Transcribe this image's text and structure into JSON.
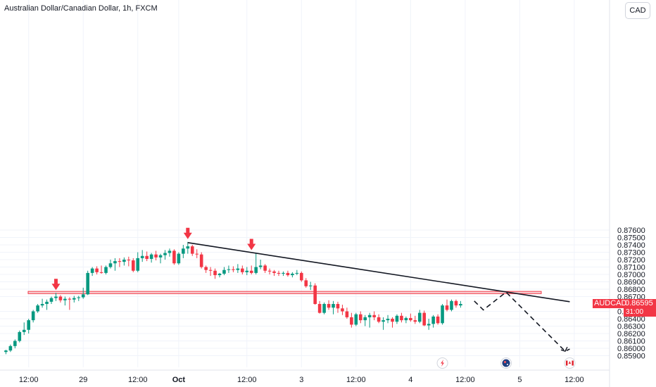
{
  "header": {
    "title": "Australian Dollar/Canadian Dollar, 1h, FXCM",
    "currency_badge": "CAD"
  },
  "colors": {
    "up": "#089981",
    "down": "#f23645",
    "grid": "#f0f3fa",
    "trendline": "#131722",
    "zone_fill": "#f7c6cb",
    "zone_border": "#f23645",
    "text": "#131722"
  },
  "last_price": {
    "symbol": "AUDCAD",
    "value": "0.86595",
    "countdown": "31:00"
  },
  "chart_data": {
    "type": "candlestick",
    "symbol": "AUDCAD",
    "timeframe": "1h",
    "source": "FXCM",
    "y_ticks": [
      "0.87600",
      "0.87500",
      "0.87400",
      "0.87300",
      "0.87200",
      "0.87100",
      "0.87000",
      "0.86900",
      "0.86800",
      "0.86700",
      "0.86500",
      "0.86400",
      "0.86300",
      "0.86200",
      "0.86100",
      "0.86000",
      "0.85900"
    ],
    "ylim": [
      0.859,
      0.8765
    ],
    "x_ticks": [
      {
        "bar": 5,
        "label": "12:00"
      },
      {
        "bar": 17,
        "label": "29"
      },
      {
        "bar": 29,
        "label": "12:00"
      },
      {
        "bar": 38,
        "label": "Oct"
      },
      {
        "bar": 53,
        "label": "12:00"
      },
      {
        "bar": 65,
        "label": "3"
      },
      {
        "bar": 77,
        "label": "12:00"
      },
      {
        "bar": 89,
        "label": "4"
      },
      {
        "bar": 101,
        "label": "12:00"
      },
      {
        "bar": 113,
        "label": "5"
      },
      {
        "bar": 125,
        "label": "12:00"
      }
    ],
    "candles": [
      [
        0.8595,
        0.8598,
        0.8592,
        0.8597
      ],
      [
        0.8597,
        0.8605,
        0.8595,
        0.8603
      ],
      [
        0.8603,
        0.8612,
        0.86,
        0.861
      ],
      [
        0.861,
        0.8624,
        0.8608,
        0.8622
      ],
      [
        0.8622,
        0.8635,
        0.8618,
        0.8625
      ],
      [
        0.8625,
        0.864,
        0.862,
        0.8638
      ],
      [
        0.8638,
        0.8652,
        0.8635,
        0.865
      ],
      [
        0.865,
        0.866,
        0.8648,
        0.8658
      ],
      [
        0.8658,
        0.8667,
        0.8655,
        0.866
      ],
      [
        0.866,
        0.8666,
        0.8652,
        0.8663
      ],
      [
        0.8663,
        0.867,
        0.866,
        0.8668
      ],
      [
        0.8668,
        0.8675,
        0.8664,
        0.867
      ],
      [
        0.867,
        0.8672,
        0.8662,
        0.8665
      ],
      [
        0.8665,
        0.867,
        0.8658,
        0.8667
      ],
      [
        0.8667,
        0.8669,
        0.8652,
        0.8666
      ],
      [
        0.8666,
        0.8671,
        0.8662,
        0.8668
      ],
      [
        0.8668,
        0.8671,
        0.8664,
        0.8669
      ],
      [
        0.8669,
        0.8682,
        0.8667,
        0.8673
      ],
      [
        0.8673,
        0.8705,
        0.8672,
        0.8702
      ],
      [
        0.8702,
        0.871,
        0.8698,
        0.8708
      ],
      [
        0.8708,
        0.8711,
        0.87,
        0.8703
      ],
      [
        0.8703,
        0.8712,
        0.8701,
        0.8702
      ],
      [
        0.8702,
        0.8712,
        0.87,
        0.871
      ],
      [
        0.871,
        0.872,
        0.8708,
        0.8715
      ],
      [
        0.8715,
        0.8722,
        0.8705,
        0.8718
      ],
      [
        0.8718,
        0.8722,
        0.871,
        0.8717
      ],
      [
        0.8717,
        0.8723,
        0.8712,
        0.872
      ],
      [
        0.872,
        0.8724,
        0.8711,
        0.8719
      ],
      [
        0.8719,
        0.8722,
        0.8703,
        0.8705
      ],
      [
        0.8705,
        0.873,
        0.8703,
        0.8722
      ],
      [
        0.8722,
        0.8733,
        0.8717,
        0.8725
      ],
      [
        0.8725,
        0.8731,
        0.8718,
        0.8721
      ],
      [
        0.8721,
        0.8729,
        0.8716,
        0.8727
      ],
      [
        0.8727,
        0.8732,
        0.8719,
        0.8723
      ],
      [
        0.8723,
        0.8728,
        0.8715,
        0.8726
      ],
      [
        0.8726,
        0.8733,
        0.872,
        0.8729
      ],
      [
        0.8729,
        0.8735,
        0.8724,
        0.8732
      ],
      [
        0.8732,
        0.8734,
        0.8713,
        0.8715
      ],
      [
        0.8715,
        0.873,
        0.8713,
        0.8728
      ],
      [
        0.8728,
        0.874,
        0.8722,
        0.8735
      ],
      [
        0.8735,
        0.8744,
        0.8728,
        0.8738
      ],
      [
        0.8738,
        0.874,
        0.8725,
        0.8728
      ],
      [
        0.8728,
        0.8734,
        0.8722,
        0.8727
      ],
      [
        0.8727,
        0.873,
        0.8708,
        0.871
      ],
      [
        0.871,
        0.8712,
        0.8702,
        0.8706
      ],
      [
        0.8706,
        0.871,
        0.8698,
        0.8705
      ],
      [
        0.8705,
        0.8708,
        0.8694,
        0.8699
      ],
      [
        0.8699,
        0.8702,
        0.8696,
        0.8701
      ],
      [
        0.8701,
        0.871,
        0.8699,
        0.8706
      ],
      [
        0.8706,
        0.8712,
        0.8702,
        0.8707
      ],
      [
        0.8707,
        0.8711,
        0.8703,
        0.8706
      ],
      [
        0.8706,
        0.8714,
        0.8702,
        0.8708
      ],
      [
        0.8708,
        0.8712,
        0.87,
        0.8703
      ],
      [
        0.8703,
        0.871,
        0.8699,
        0.8705
      ],
      [
        0.8705,
        0.8712,
        0.87,
        0.8702
      ],
      [
        0.8702,
        0.8729,
        0.87,
        0.871
      ],
      [
        0.871,
        0.872,
        0.8707,
        0.8712
      ],
      [
        0.8712,
        0.8714,
        0.8702,
        0.8705
      ],
      [
        0.8705,
        0.8708,
        0.87,
        0.8704
      ],
      [
        0.8704,
        0.8706,
        0.8698,
        0.8702
      ],
      [
        0.8702,
        0.8705,
        0.8698,
        0.8701
      ],
      [
        0.8701,
        0.8704,
        0.8698,
        0.8702
      ],
      [
        0.8702,
        0.8705,
        0.8697,
        0.8699
      ],
      [
        0.8699,
        0.8703,
        0.8696,
        0.8701
      ],
      [
        0.8701,
        0.8706,
        0.8699,
        0.8702
      ],
      [
        0.8702,
        0.8704,
        0.869,
        0.8692
      ],
      [
        0.8692,
        0.8695,
        0.8682,
        0.8684
      ],
      [
        0.8684,
        0.869,
        0.8679,
        0.8685
      ],
      [
        0.8685,
        0.8688,
        0.8659,
        0.866
      ],
      [
        0.866,
        0.8664,
        0.8647,
        0.8648
      ],
      [
        0.8648,
        0.8662,
        0.8646,
        0.866
      ],
      [
        0.866,
        0.8665,
        0.8652,
        0.8655
      ],
      [
        0.8655,
        0.8664,
        0.8646,
        0.866
      ],
      [
        0.866,
        0.8663,
        0.8648,
        0.8654
      ],
      [
        0.8654,
        0.8659,
        0.8645,
        0.865
      ],
      [
        0.865,
        0.8655,
        0.864,
        0.8642
      ],
      [
        0.8642,
        0.8648,
        0.8628,
        0.8632
      ],
      [
        0.8632,
        0.8648,
        0.863,
        0.8646
      ],
      [
        0.8646,
        0.865,
        0.8634,
        0.8638
      ],
      [
        0.8638,
        0.8645,
        0.863,
        0.8642
      ],
      [
        0.8642,
        0.8648,
        0.8628,
        0.8645
      ],
      [
        0.8645,
        0.865,
        0.8638,
        0.8642
      ],
      [
        0.8642,
        0.8646,
        0.8634,
        0.8636
      ],
      [
        0.8636,
        0.8642,
        0.8625,
        0.8638
      ],
      [
        0.8638,
        0.8645,
        0.8634,
        0.864
      ],
      [
        0.864,
        0.8642,
        0.8628,
        0.8636
      ],
      [
        0.8636,
        0.8646,
        0.8633,
        0.8644
      ],
      [
        0.8644,
        0.8648,
        0.8635,
        0.8638
      ],
      [
        0.8638,
        0.8643,
        0.8634,
        0.8641
      ],
      [
        0.8641,
        0.8647,
        0.8636,
        0.8638
      ],
      [
        0.8638,
        0.8644,
        0.8633,
        0.8636
      ],
      [
        0.8636,
        0.8652,
        0.8634,
        0.8648
      ],
      [
        0.8648,
        0.8651,
        0.863,
        0.8631
      ],
      [
        0.8631,
        0.864,
        0.8625,
        0.8633
      ],
      [
        0.8633,
        0.8645,
        0.8628,
        0.8643
      ],
      [
        0.8643,
        0.8646,
        0.8632,
        0.8634
      ],
      [
        0.8634,
        0.866,
        0.8632,
        0.8658
      ],
      [
        0.8658,
        0.8666,
        0.865,
        0.8652
      ],
      [
        0.8652,
        0.8666,
        0.865,
        0.8664
      ],
      [
        0.8664,
        0.8666,
        0.8655,
        0.8658
      ],
      [
        0.8658,
        0.8664,
        0.8655,
        0.866
      ]
    ],
    "annotations": {
      "resistance_zone": [
        0.8674,
        0.8677
      ],
      "trendline": [
        {
          "bar": 40,
          "price": 0.8743
        },
        {
          "bar": 124,
          "price": 0.8663
        }
      ],
      "projection": [
        {
          "bar": 103,
          "price": 0.8664
        },
        {
          "bar": 105,
          "price": 0.8652
        },
        {
          "bar": 110,
          "price": 0.8676
        },
        {
          "bar": 123,
          "price": 0.8596
        },
        {
          "bar": 124,
          "price": 0.8599
        }
      ],
      "peak_arrows": [
        {
          "bar": 11,
          "price": 0.8675
        },
        {
          "bar": 40,
          "price": 0.8744
        },
        {
          "bar": 54,
          "price": 0.8729
        }
      ]
    },
    "event_icons": [
      {
        "bar": 96,
        "icon": "lightning-icon"
      },
      {
        "bar": 110,
        "icon": "australia-flag-icon"
      },
      {
        "bar": 124,
        "icon": "canada-flag-icon"
      }
    ]
  }
}
